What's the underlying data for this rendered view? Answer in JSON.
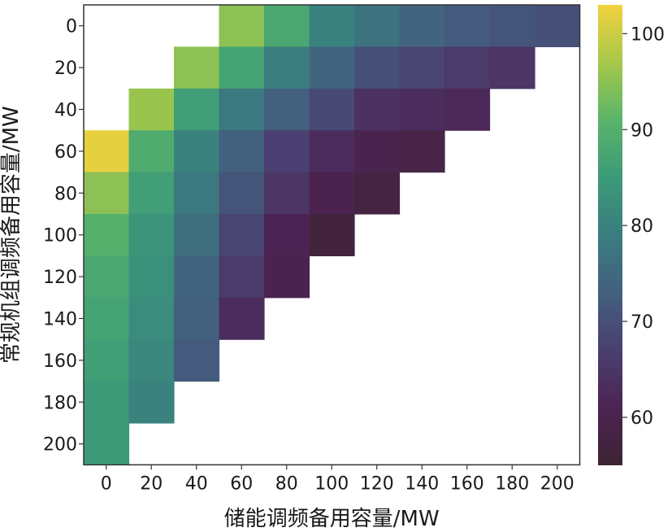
{
  "chart_data": {
    "type": "heatmap",
    "xlabel": "储能调频备用容量/MW",
    "ylabel": "常规机组调频备用容量/MW",
    "x": [
      0,
      20,
      40,
      60,
      80,
      100,
      120,
      140,
      160,
      180,
      200
    ],
    "y": [
      0,
      20,
      40,
      60,
      80,
      100,
      120,
      140,
      160,
      180,
      200
    ],
    "x_tick_labels": [
      "0",
      "20",
      "40",
      "60",
      "80",
      "100",
      "120",
      "140",
      "160",
      "180",
      "200"
    ],
    "y_tick_labels": [
      "0",
      "20",
      "40",
      "60",
      "80",
      "100",
      "120",
      "140",
      "160",
      "180",
      "200"
    ],
    "values": [
      [
        null,
        null,
        null,
        95,
        88,
        80,
        77,
        74,
        72,
        71,
        70
      ],
      [
        null,
        null,
        95,
        87,
        79,
        74,
        70,
        68,
        66,
        65,
        null
      ],
      [
        null,
        96,
        86,
        78,
        73,
        69,
        64,
        63,
        62,
        null,
        null
      ],
      [
        102,
        89,
        80,
        73,
        67,
        63,
        60,
        59,
        null,
        null,
        null
      ],
      [
        95,
        86,
        78,
        71,
        65,
        60,
        58,
        null,
        null,
        null,
        null
      ],
      [
        90,
        84,
        76,
        68,
        61,
        57,
        null,
        null,
        null,
        null,
        null
      ],
      [
        88,
        83,
        74,
        66,
        60,
        null,
        null,
        null,
        null,
        null,
        null
      ],
      [
        87,
        82,
        73,
        63,
        null,
        null,
        null,
        null,
        null,
        null,
        null
      ],
      [
        86,
        81,
        72,
        null,
        null,
        null,
        null,
        null,
        null,
        null,
        null
      ],
      [
        85,
        80,
        null,
        null,
        null,
        null,
        null,
        null,
        null,
        null,
        null
      ],
      [
        85,
        null,
        null,
        null,
        null,
        null,
        null,
        null,
        null,
        null,
        null
      ]
    ],
    "colorbar": {
      "min": 55,
      "max": 103,
      "ticks": [
        60,
        70,
        80,
        90,
        100
      ],
      "tick_labels": [
        "60",
        "70",
        "80",
        "90",
        "100"
      ],
      "colormap": "viridis-like",
      "stops": [
        "#3d2433",
        "#4c2453",
        "#4a3f70",
        "#43607f",
        "#3a7d7f",
        "#3c9a78",
        "#5ab46a",
        "#a6c84a",
        "#f2d13e"
      ]
    }
  }
}
